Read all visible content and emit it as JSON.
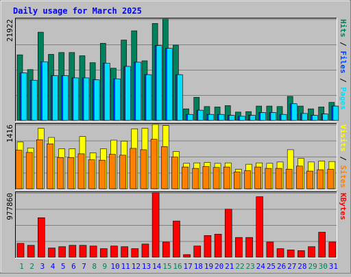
{
  "chart_data": {
    "type": "bar",
    "title": "Daily usage for March 2025",
    "days": [
      "1",
      "2",
      "3",
      "4",
      "5",
      "6",
      "7",
      "8",
      "9",
      "10",
      "11",
      "12",
      "13",
      "14",
      "15",
      "16",
      "17",
      "18",
      "19",
      "20",
      "21",
      "22",
      "23",
      "24",
      "25",
      "26",
      "27",
      "28",
      "29",
      "30",
      "31"
    ],
    "weekend_days": [
      "1",
      "2",
      "8",
      "9",
      "15",
      "16",
      "22",
      "23",
      "29",
      "30"
    ],
    "panels": [
      {
        "key": "hits",
        "max_label": "21922",
        "ymax": 21922,
        "side_label": {
          "a": "Pages",
          "sep1": " / ",
          "b": "Files",
          "sep2": " / ",
          "c": "Hits"
        },
        "series": [
          {
            "name": "Hits",
            "color": "#00805c",
            "values": [
              14200,
              11000,
              19100,
              14300,
              14700,
              14700,
              14000,
              12500,
              16700,
              11300,
              17400,
              19400,
              12900,
              21000,
              22500,
              16300,
              2500,
              5000,
              3000,
              2900,
              3200,
              1800,
              1900,
              3100,
              3100,
              3000,
              5200,
              3100,
              2500,
              2900,
              3900
            ]
          },
          {
            "name": "Files",
            "color": "#0040ff",
            "values": [
              10300,
              8700,
              12700,
              9700,
              9700,
              9200,
              9200,
              8800,
              12400,
              9000,
              11700,
              12600,
              9900,
              16200,
              15600,
              9900,
              1300,
              2200,
              1300,
              1300,
              1100,
              900,
              1100,
              1700,
              1700,
              1300,
              3600,
              1500,
              1100,
              1400,
              3100
            ]
          },
          {
            "name": "Pages",
            "color": "#00e0ff",
            "values": [
              10300,
              8700,
              12700,
              9700,
              9700,
              9200,
              9200,
              8800,
              12400,
              9000,
              11700,
              12600,
              9900,
              16200,
              15600,
              9900,
              1300,
              2200,
              1300,
              1300,
              1100,
              900,
              1100,
              1700,
              1700,
              1300,
              3600,
              1500,
              1100,
              1400,
              3100
            ]
          }
        ]
      },
      {
        "key": "visits",
        "max_label": "1416",
        "ymax": 1416,
        "side_label": {
          "a": "Sites",
          "sep1": " / ",
          "b": "Visits"
        },
        "series": [
          {
            "name": "Visits",
            "color": "#ffff00",
            "values": [
              1030,
              900,
              1330,
              1130,
              880,
              880,
              1150,
              790,
              880,
              1070,
              1050,
              1320,
              1330,
              1450,
              1390,
              820,
              560,
              570,
              580,
              560,
              570,
              430,
              540,
              570,
              560,
              590,
              860,
              670,
              590,
              610,
              600
            ]
          },
          {
            "name": "Sites",
            "color": "#ff8000",
            "values": [
              850,
              800,
              1080,
              990,
              690,
              690,
              770,
              640,
              630,
              760,
              740,
              890,
              860,
              1090,
              930,
              700,
              480,
              450,
              490,
              470,
              480,
              370,
              400,
              480,
              450,
              450,
              430,
              500,
              390,
              420,
              430
            ]
          }
        ]
      },
      {
        "key": "kbytes",
        "max_label": "977860",
        "ymax": 977860,
        "side_label": {
          "a": "KBytes"
        },
        "series": [
          {
            "name": "KBytes",
            "color": "#ff0000",
            "values": [
              210000,
              180000,
              600000,
              140000,
              160000,
              180000,
              180000,
              170000,
              130000,
              170000,
              160000,
              130000,
              200000,
              1010000,
              230000,
              550000,
              40000,
              170000,
              330000,
              350000,
              730000,
              300000,
              300000,
              920000,
              230000,
              130000,
              110000,
              100000,
              160000,
              380000,
              230000
            ]
          }
        ]
      }
    ]
  },
  "colors": {
    "background": "#c0c0c0",
    "plot_area": "#c0c0c0",
    "grid": "#808080",
    "title": "#0000ff",
    "weekday_label": "#0000ff",
    "weekend_label": "#00805c",
    "label_hits": "#00805c",
    "label_files": "#0040ff",
    "label_pages": "#00e0ff",
    "label_visits": "#ffff00",
    "label_sites": "#ff8000",
    "label_kbytes": "#ff0000",
    "separator": "#000000"
  }
}
